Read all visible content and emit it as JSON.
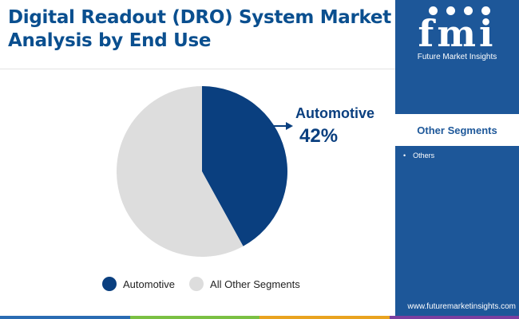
{
  "title": "Digital Readout (DRO) System Market Analysis by End Use",
  "brand": {
    "mark": "fmi",
    "name": "Future Market Insights",
    "website": "www.futuremarketinsights.com"
  },
  "side_panel": {
    "header": "Other Segments",
    "items": [
      "Others"
    ]
  },
  "colors": {
    "brand_blue": "#0a4f8f",
    "panel_blue": "#1d5799",
    "automotive": "#0a3f7f",
    "other": "#dddddd",
    "bottom_bar": [
      "#2a6cb3",
      "#7ac043",
      "#e9a320",
      "#7b3fa0"
    ]
  },
  "chart_data": {
    "type": "pie",
    "title": "",
    "slices": [
      {
        "label": "Automotive",
        "value": 42,
        "color": "#0a3f7f"
      },
      {
        "label": "All Other Segments",
        "value": 58,
        "color": "#dddddd"
      }
    ],
    "annotation": {
      "label": "Automotive",
      "value_text": "42%"
    },
    "legend": [
      {
        "label": "Automotive",
        "color": "#0a3f7f"
      },
      {
        "label": "All Other Segments",
        "color": "#dddddd"
      }
    ],
    "legend_position": "bottom"
  }
}
